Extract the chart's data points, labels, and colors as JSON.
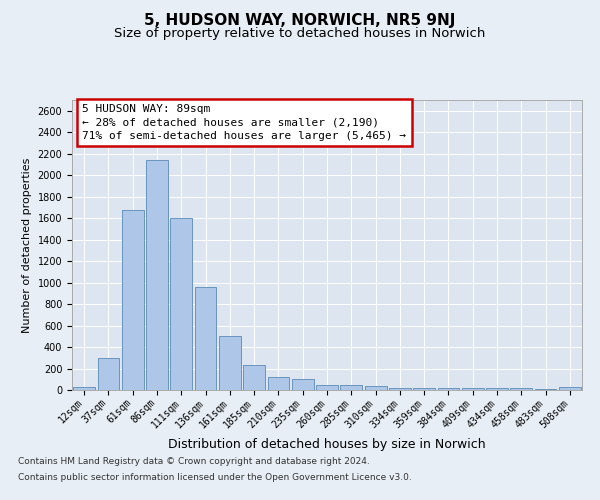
{
  "title": "5, HUDSON WAY, NORWICH, NR5 9NJ",
  "subtitle": "Size of property relative to detached houses in Norwich",
  "xlabel": "Distribution of detached houses by size in Norwich",
  "ylabel": "Number of detached properties",
  "categories": [
    "12sqm",
    "37sqm",
    "61sqm",
    "86sqm",
    "111sqm",
    "136sqm",
    "161sqm",
    "185sqm",
    "210sqm",
    "235sqm",
    "260sqm",
    "285sqm",
    "310sqm",
    "334sqm",
    "359sqm",
    "384sqm",
    "409sqm",
    "434sqm",
    "458sqm",
    "483sqm",
    "508sqm"
  ],
  "values": [
    25,
    300,
    1680,
    2140,
    1600,
    960,
    500,
    235,
    125,
    100,
    50,
    50,
    35,
    20,
    20,
    20,
    15,
    20,
    15,
    5,
    25
  ],
  "bar_color": "#aec6e8",
  "bar_edge_color": "#5a8ab8",
  "annotation_line1": "5 HUDSON WAY: 89sqm",
  "annotation_line2": "← 28% of detached houses are smaller (2,190)",
  "annotation_line3": "71% of semi-detached houses are larger (5,465) →",
  "annotation_box_color": "#ffffff",
  "annotation_box_edge_color": "#cc0000",
  "ylim": [
    0,
    2700
  ],
  "yticks": [
    0,
    200,
    400,
    600,
    800,
    1000,
    1200,
    1400,
    1600,
    1800,
    2000,
    2200,
    2400,
    2600
  ],
  "bg_color": "#e8eef5",
  "plot_bg_color": "#dce5f0",
  "footer_line1": "Contains HM Land Registry data © Crown copyright and database right 2024.",
  "footer_line2": "Contains public sector information licensed under the Open Government Licence v3.0.",
  "title_fontsize": 11,
  "subtitle_fontsize": 9.5,
  "xlabel_fontsize": 9,
  "ylabel_fontsize": 8,
  "tick_fontsize": 7,
  "annotation_fontsize": 8,
  "footer_fontsize": 6.5
}
